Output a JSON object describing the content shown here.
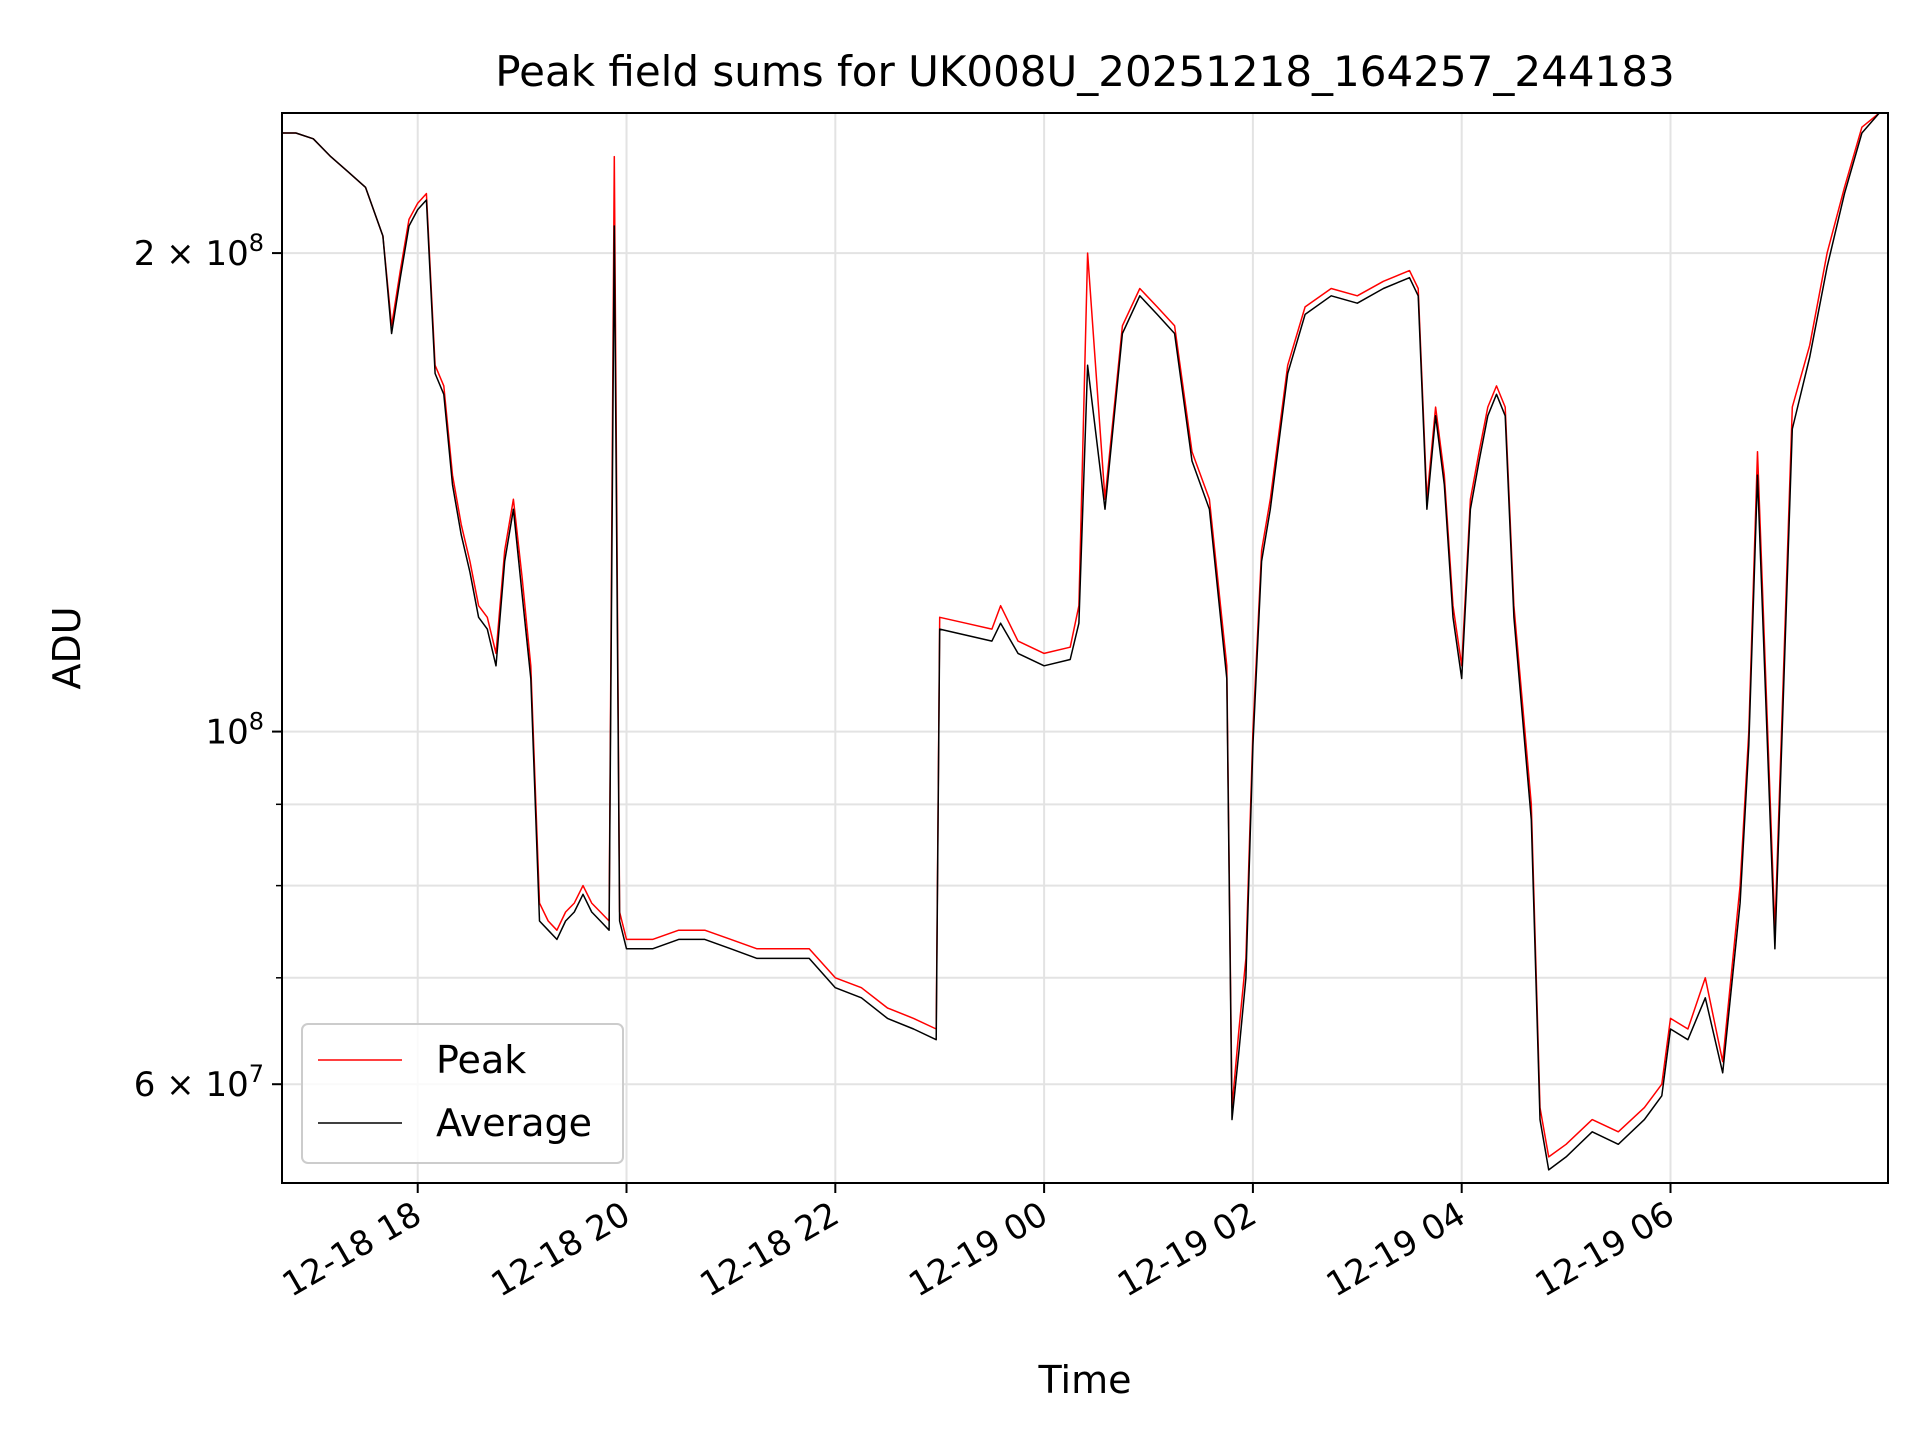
{
  "chart_data": {
    "type": "line",
    "title": "Peak field sums for UK008U_20251218_164257_244183",
    "xlabel": "Time",
    "ylabel": "ADU",
    "yscale": "log",
    "grid": true,
    "legend_position": "lower-left",
    "xlim": [
      "2025-12-18 16:42",
      "2025-12-19 08:05"
    ],
    "ylim": [
      52000000,
      245000000
    ],
    "x_ticks": [
      {
        "value": "2025-12-18 18:00",
        "label": "12-18 18"
      },
      {
        "value": "2025-12-18 20:00",
        "label": "12-18 20"
      },
      {
        "value": "2025-12-18 22:00",
        "label": "12-18 22"
      },
      {
        "value": "2025-12-19 00:00",
        "label": "12-19 00"
      },
      {
        "value": "2025-12-19 02:00",
        "label": "12-19 02"
      },
      {
        "value": "2025-12-19 04:00",
        "label": "12-19 04"
      },
      {
        "value": "2025-12-19 06:00",
        "label": "12-19 06"
      }
    ],
    "y_ticks": [
      {
        "value": 60000000,
        "base": "6 × 10",
        "exp": "7"
      },
      {
        "value": 100000000,
        "base": "10",
        "exp": "8"
      },
      {
        "value": 200000000,
        "base": "2 × 10",
        "exp": "8"
      }
    ],
    "y_minor_ticks": [
      70000000,
      80000000,
      90000000
    ],
    "series": [
      {
        "name": "Peak",
        "color": "#ff0000",
        "x": [
          "2025-12-18 16:42",
          "2025-12-18 16:50",
          "2025-12-18 17:00",
          "2025-12-18 17:10",
          "2025-12-18 17:20",
          "2025-12-18 17:30",
          "2025-12-18 17:40",
          "2025-12-18 17:45",
          "2025-12-18 17:50",
          "2025-12-18 17:55",
          "2025-12-18 18:00",
          "2025-12-18 18:05",
          "2025-12-18 18:10",
          "2025-12-18 18:15",
          "2025-12-18 18:20",
          "2025-12-18 18:25",
          "2025-12-18 18:30",
          "2025-12-18 18:35",
          "2025-12-18 18:40",
          "2025-12-18 18:45",
          "2025-12-18 18:50",
          "2025-12-18 18:55",
          "2025-12-18 19:00",
          "2025-12-18 19:05",
          "2025-12-18 19:10",
          "2025-12-18 19:15",
          "2025-12-18 19:20",
          "2025-12-18 19:25",
          "2025-12-18 19:30",
          "2025-12-18 19:35",
          "2025-12-18 19:40",
          "2025-12-18 19:45",
          "2025-12-18 19:50",
          "2025-12-18 19:53",
          "2025-12-18 19:56",
          "2025-12-18 20:00",
          "2025-12-18 20:15",
          "2025-12-18 20:30",
          "2025-12-18 20:45",
          "2025-12-18 21:00",
          "2025-12-18 21:15",
          "2025-12-18 21:30",
          "2025-12-18 21:45",
          "2025-12-18 22:00",
          "2025-12-18 22:15",
          "2025-12-18 22:30",
          "2025-12-18 22:45",
          "2025-12-18 22:58",
          "2025-12-18 23:00",
          "2025-12-18 23:15",
          "2025-12-18 23:30",
          "2025-12-18 23:35",
          "2025-12-18 23:45",
          "2025-12-19 00:00",
          "2025-12-19 00:15",
          "2025-12-19 00:20",
          "2025-12-19 00:25",
          "2025-12-19 00:35",
          "2025-12-19 00:45",
          "2025-12-19 00:55",
          "2025-12-19 01:05",
          "2025-12-19 01:15",
          "2025-12-19 01:25",
          "2025-12-19 01:35",
          "2025-12-19 01:45",
          "2025-12-19 01:48",
          "2025-12-19 01:52",
          "2025-12-19 01:56",
          "2025-12-19 02:00",
          "2025-12-19 02:05",
          "2025-12-19 02:10",
          "2025-12-19 02:20",
          "2025-12-19 02:30",
          "2025-12-19 02:45",
          "2025-12-19 03:00",
          "2025-12-19 03:15",
          "2025-12-19 03:30",
          "2025-12-19 03:35",
          "2025-12-19 03:40",
          "2025-12-19 03:45",
          "2025-12-19 03:50",
          "2025-12-19 03:55",
          "2025-12-19 04:00",
          "2025-12-19 04:05",
          "2025-12-19 04:10",
          "2025-12-19 04:15",
          "2025-12-19 04:20",
          "2025-12-19 04:25",
          "2025-12-19 04:30",
          "2025-12-19 04:40",
          "2025-12-19 04:45",
          "2025-12-19 04:50",
          "2025-12-19 05:00",
          "2025-12-19 05:15",
          "2025-12-19 05:30",
          "2025-12-19 05:45",
          "2025-12-19 05:55",
          "2025-12-19 06:00",
          "2025-12-19 06:10",
          "2025-12-19 06:20",
          "2025-12-19 06:30",
          "2025-12-19 06:40",
          "2025-12-19 06:45",
          "2025-12-19 06:50",
          "2025-12-19 07:00",
          "2025-12-19 07:10",
          "2025-12-19 07:20",
          "2025-12-19 07:30",
          "2025-12-19 07:40",
          "2025-12-19 07:50",
          "2025-12-19 08:00"
        ],
        "values": [
          238000000,
          238000000,
          236000000,
          230000000,
          225000000,
          220000000,
          205000000,
          180000000,
          195000000,
          210000000,
          215000000,
          218000000,
          170000000,
          165000000,
          145000000,
          135000000,
          128000000,
          120000000,
          118000000,
          112000000,
          130000000,
          140000000,
          125000000,
          110000000,
          78000000,
          76000000,
          75000000,
          77000000,
          78000000,
          80000000,
          78000000,
          77000000,
          76000000,
          230000000,
          77000000,
          74000000,
          74000000,
          75000000,
          75000000,
          74000000,
          73000000,
          73000000,
          73000000,
          70000000,
          69000000,
          67000000,
          66000000,
          65000000,
          118000000,
          117000000,
          116000000,
          120000000,
          114000000,
          112000000,
          113000000,
          120000000,
          200000000,
          140000000,
          180000000,
          190000000,
          185000000,
          180000000,
          150000000,
          140000000,
          110000000,
          58000000,
          65000000,
          72000000,
          100000000,
          130000000,
          140000000,
          170000000,
          185000000,
          190000000,
          188000000,
          192000000,
          195000000,
          190000000,
          140000000,
          160000000,
          145000000,
          120000000,
          110000000,
          140000000,
          150000000,
          160000000,
          165000000,
          160000000,
          120000000,
          90000000,
          58000000,
          54000000,
          55000000,
          57000000,
          56000000,
          58000000,
          60000000,
          66000000,
          65000000,
          70000000,
          62000000,
          80000000,
          100000000,
          150000000,
          75000000,
          160000000,
          175000000,
          200000000,
          220000000,
          240000000,
          245000000
        ]
      },
      {
        "name": "Average",
        "color": "#000000",
        "x": [
          "2025-12-18 16:42",
          "2025-12-18 16:50",
          "2025-12-18 17:00",
          "2025-12-18 17:10",
          "2025-12-18 17:20",
          "2025-12-18 17:30",
          "2025-12-18 17:40",
          "2025-12-18 17:45",
          "2025-12-18 17:50",
          "2025-12-18 17:55",
          "2025-12-18 18:00",
          "2025-12-18 18:05",
          "2025-12-18 18:10",
          "2025-12-18 18:15",
          "2025-12-18 18:20",
          "2025-12-18 18:25",
          "2025-12-18 18:30",
          "2025-12-18 18:35",
          "2025-12-18 18:40",
          "2025-12-18 18:45",
          "2025-12-18 18:50",
          "2025-12-18 18:55",
          "2025-12-18 19:00",
          "2025-12-18 19:05",
          "2025-12-18 19:10",
          "2025-12-18 19:15",
          "2025-12-18 19:20",
          "2025-12-18 19:25",
          "2025-12-18 19:30",
          "2025-12-18 19:35",
          "2025-12-18 19:40",
          "2025-12-18 19:45",
          "2025-12-18 19:50",
          "2025-12-18 19:53",
          "2025-12-18 19:56",
          "2025-12-18 20:00",
          "2025-12-18 20:15",
          "2025-12-18 20:30",
          "2025-12-18 20:45",
          "2025-12-18 21:00",
          "2025-12-18 21:15",
          "2025-12-18 21:30",
          "2025-12-18 21:45",
          "2025-12-18 22:00",
          "2025-12-18 22:15",
          "2025-12-18 22:30",
          "2025-12-18 22:45",
          "2025-12-18 22:58",
          "2025-12-18 23:00",
          "2025-12-18 23:15",
          "2025-12-18 23:30",
          "2025-12-18 23:35",
          "2025-12-18 23:45",
          "2025-12-19 00:00",
          "2025-12-19 00:15",
          "2025-12-19 00:20",
          "2025-12-19 00:25",
          "2025-12-19 00:35",
          "2025-12-19 00:45",
          "2025-12-19 00:55",
          "2025-12-19 01:05",
          "2025-12-19 01:15",
          "2025-12-19 01:25",
          "2025-12-19 01:35",
          "2025-12-19 01:45",
          "2025-12-19 01:48",
          "2025-12-19 01:52",
          "2025-12-19 01:56",
          "2025-12-19 02:00",
          "2025-12-19 02:05",
          "2025-12-19 02:10",
          "2025-12-19 02:20",
          "2025-12-19 02:30",
          "2025-12-19 02:45",
          "2025-12-19 03:00",
          "2025-12-19 03:15",
          "2025-12-19 03:30",
          "2025-12-19 03:35",
          "2025-12-19 03:40",
          "2025-12-19 03:45",
          "2025-12-19 03:50",
          "2025-12-19 03:55",
          "2025-12-19 04:00",
          "2025-12-19 04:05",
          "2025-12-19 04:10",
          "2025-12-19 04:15",
          "2025-12-19 04:20",
          "2025-12-19 04:25",
          "2025-12-19 04:30",
          "2025-12-19 04:40",
          "2025-12-19 04:45",
          "2025-12-19 04:50",
          "2025-12-19 05:00",
          "2025-12-19 05:15",
          "2025-12-19 05:30",
          "2025-12-19 05:45",
          "2025-12-19 05:55",
          "2025-12-19 06:00",
          "2025-12-19 06:10",
          "2025-12-19 06:20",
          "2025-12-19 06:30",
          "2025-12-19 06:40",
          "2025-12-19 06:45",
          "2025-12-19 06:50",
          "2025-12-19 07:00",
          "2025-12-19 07:10",
          "2025-12-19 07:20",
          "2025-12-19 07:30",
          "2025-12-19 07:40",
          "2025-12-19 07:50",
          "2025-12-19 08:00"
        ],
        "values": [
          238000000,
          238000000,
          236000000,
          230000000,
          225000000,
          220000000,
          205000000,
          178000000,
          193000000,
          208000000,
          213000000,
          216000000,
          168000000,
          163000000,
          143000000,
          133000000,
          126000000,
          118000000,
          116000000,
          110000000,
          128000000,
          138000000,
          122000000,
          108000000,
          76000000,
          75000000,
          74000000,
          76000000,
          77000000,
          79000000,
          77000000,
          76000000,
          75000000,
          208000000,
          76000000,
          73000000,
          73000000,
          74000000,
          74000000,
          73000000,
          72000000,
          72000000,
          72000000,
          69000000,
          68000000,
          66000000,
          65000000,
          64000000,
          116000000,
          115000000,
          114000000,
          117000000,
          112000000,
          110000000,
          111000000,
          117000000,
          170000000,
          138000000,
          178000000,
          188000000,
          183000000,
          178000000,
          148000000,
          138000000,
          108000000,
          57000000,
          63000000,
          70000000,
          98000000,
          128000000,
          138000000,
          168000000,
          183000000,
          188000000,
          186000000,
          190000000,
          193000000,
          188000000,
          138000000,
          158000000,
          143000000,
          118000000,
          108000000,
          138000000,
          148000000,
          158000000,
          163000000,
          158000000,
          118000000,
          88000000,
          57000000,
          53000000,
          54000000,
          56000000,
          55000000,
          57000000,
          59000000,
          65000000,
          64000000,
          68000000,
          61000000,
          78000000,
          98000000,
          145000000,
          73000000,
          155000000,
          172000000,
          196000000,
          218000000,
          238000000,
          245000000
        ]
      }
    ]
  }
}
